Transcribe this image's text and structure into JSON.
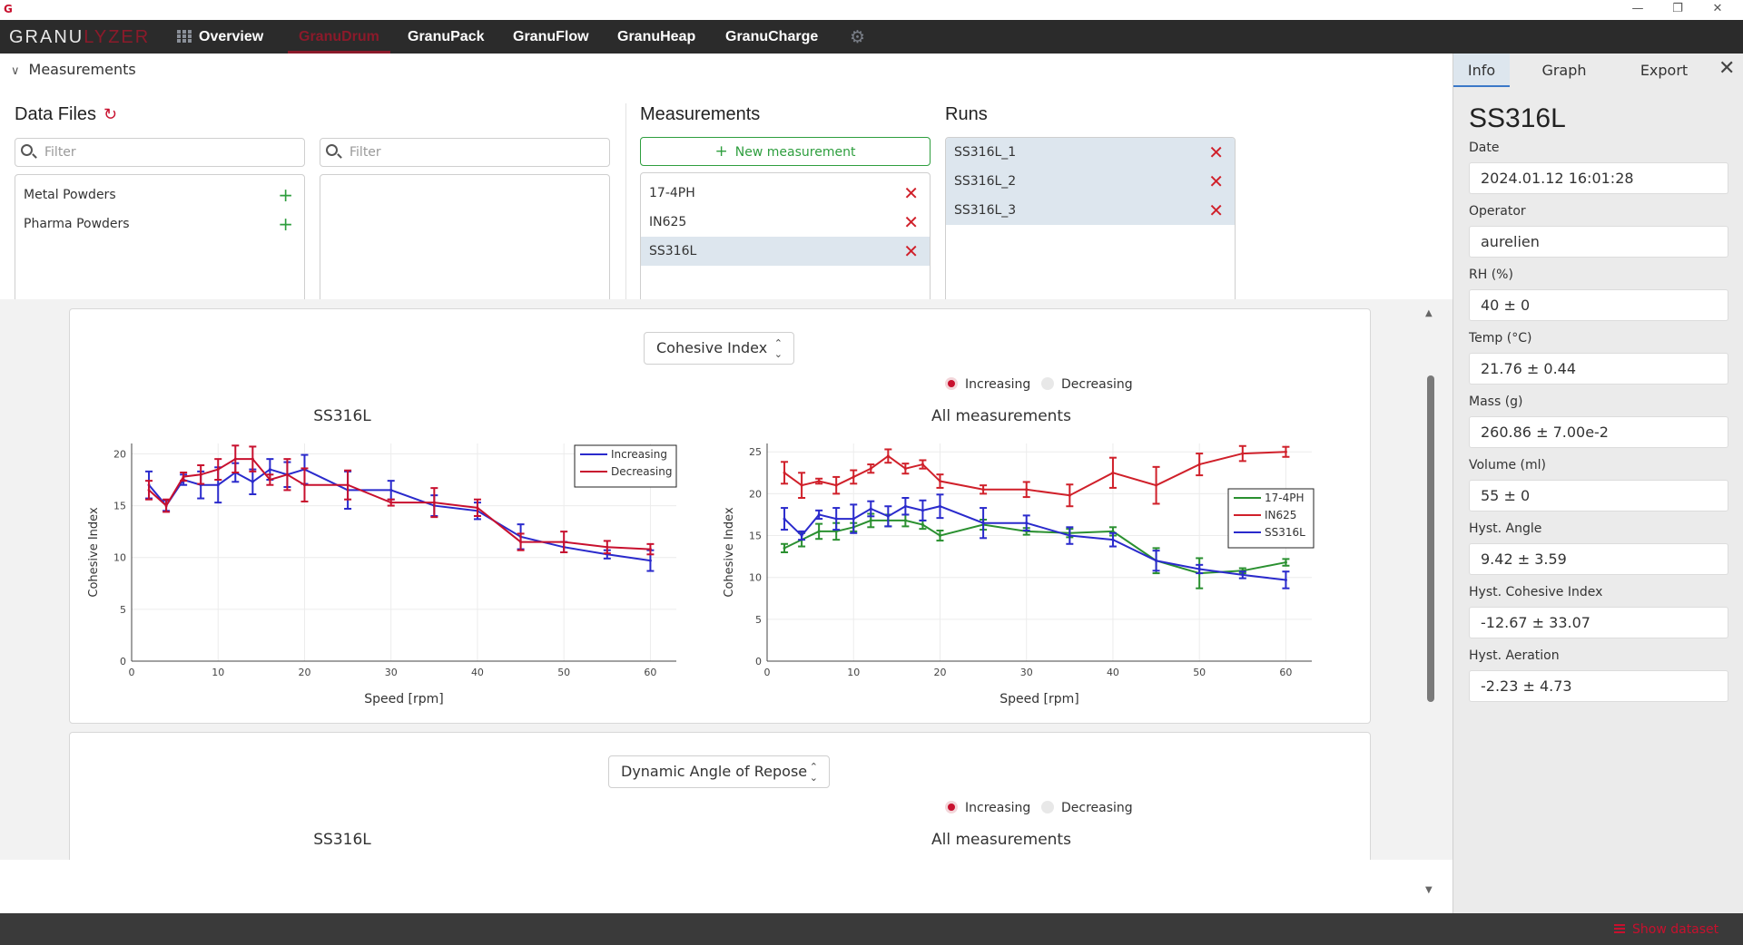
{
  "app": {
    "brand_part1": "GRANU",
    "brand_part2": "LYZER",
    "accent_color": "#c8102e"
  },
  "nav": {
    "tabs": [
      {
        "label": "Overview",
        "icon": "grid-icon"
      },
      {
        "label": "GranuDrum",
        "active": true
      },
      {
        "label": "GranuPack"
      },
      {
        "label": "GranuFlow"
      },
      {
        "label": "GranuHeap"
      },
      {
        "label": "GranuCharge"
      }
    ],
    "settings_icon": "gear-icon"
  },
  "measurements_toggle": "Measurements",
  "data_files": {
    "title": "Data Files",
    "filter1_placeholder": "Filter",
    "filter2_placeholder": "Filter",
    "folders": [
      {
        "label": "Metal Powders"
      },
      {
        "label": "Pharma Powders"
      }
    ]
  },
  "measurements": {
    "title": "Measurements",
    "new_button": "New measurement",
    "items": [
      {
        "label": "17-4PH"
      },
      {
        "label": "IN625"
      },
      {
        "label": "SS316L",
        "selected": true
      }
    ]
  },
  "runs": {
    "title": "Runs",
    "items": [
      {
        "label": "SS316L_1"
      },
      {
        "label": "SS316L_2"
      },
      {
        "label": "SS316L_3"
      }
    ]
  },
  "plot_cards": [
    {
      "metric_select": "Cohesive Index",
      "radio_increasing": "Increasing",
      "radio_decreasing": "Decreasing",
      "left_title": "SS316L",
      "right_title": "All measurements"
    },
    {
      "metric_select": "Dynamic Angle of Repose",
      "radio_increasing": "Increasing",
      "radio_decreasing": "Decreasing",
      "left_title": "SS316L",
      "right_title": "All measurements"
    }
  ],
  "chart_data": [
    {
      "type": "line",
      "title": "SS316L",
      "xlabel": "Speed [rpm]",
      "ylabel": "Cohesive Index",
      "xlim": [
        0,
        63
      ],
      "ylim": [
        0,
        21
      ],
      "xticks": [
        0,
        10,
        20,
        30,
        40,
        50,
        60
      ],
      "yticks": [
        0,
        5,
        10,
        15,
        20
      ],
      "grid": true,
      "legend": "top-right",
      "error_bars": true,
      "series": [
        {
          "name": "Increasing",
          "color": "#2a2acc",
          "x": [
            2,
            4,
            6,
            8,
            10,
            12,
            14,
            16,
            18,
            20,
            25,
            30,
            35,
            40,
            45,
            50,
            55,
            60
          ],
          "y": [
            17.0,
            15.0,
            17.5,
            17.0,
            17.0,
            18.2,
            17.3,
            18.5,
            18.0,
            18.5,
            16.5,
            16.5,
            15.0,
            14.5,
            12.0,
            11.0,
            10.3,
            9.7
          ],
          "err": [
            1.3,
            0.5,
            0.5,
            1.3,
            1.7,
            0.9,
            1.2,
            1.0,
            1.2,
            1.4,
            1.8,
            0.9,
            1.0,
            0.8,
            1.2,
            0.5,
            0.4,
            1.0
          ]
        },
        {
          "name": "Decreasing",
          "color": "#c8102e",
          "x": [
            2,
            4,
            6,
            8,
            10,
            12,
            14,
            16,
            18,
            20,
            25,
            30,
            35,
            40,
            45,
            50,
            55,
            60
          ],
          "y": [
            16.5,
            15.0,
            17.8,
            18.0,
            18.5,
            19.5,
            19.5,
            17.5,
            18.0,
            17.0,
            17.0,
            15.3,
            15.3,
            14.8,
            11.5,
            11.5,
            11.0,
            10.8
          ],
          "err": [
            0.9,
            0.6,
            0.4,
            0.9,
            1.0,
            1.3,
            1.2,
            0.5,
            1.5,
            1.6,
            1.4,
            0.3,
            1.4,
            0.8,
            0.8,
            1.0,
            0.6,
            0.5
          ]
        }
      ]
    },
    {
      "type": "line",
      "title": "All measurements",
      "xlabel": "Speed [rpm]",
      "ylabel": "Cohesive Index",
      "xlim": [
        0,
        63
      ],
      "ylim": [
        0,
        26
      ],
      "xticks": [
        0,
        10,
        20,
        30,
        40,
        50,
        60
      ],
      "yticks": [
        0,
        5,
        10,
        15,
        20,
        25
      ],
      "grid": true,
      "legend": "right",
      "error_bars": true,
      "series": [
        {
          "name": "17-4PH",
          "color": "#2a9030",
          "x": [
            2,
            4,
            6,
            8,
            10,
            12,
            14,
            16,
            18,
            20,
            25,
            30,
            35,
            40,
            45,
            50,
            55,
            60
          ],
          "y": [
            13.5,
            14.5,
            15.5,
            15.5,
            16.0,
            16.8,
            16.8,
            16.8,
            16.3,
            15.0,
            16.3,
            15.5,
            15.3,
            15.5,
            12.0,
            10.5,
            10.8,
            11.8
          ],
          "err": [
            0.5,
            0.8,
            0.9,
            1.0,
            0.5,
            0.8,
            0.7,
            0.7,
            0.5,
            0.6,
            0.6,
            0.4,
            0.5,
            0.5,
            1.5,
            1.8,
            0.3,
            0.4
          ]
        },
        {
          "name": "IN625",
          "color": "#d0202a",
          "x": [
            2,
            4,
            6,
            8,
            10,
            12,
            14,
            16,
            18,
            20,
            25,
            30,
            35,
            40,
            45,
            50,
            55,
            60
          ],
          "y": [
            22.5,
            21.0,
            21.5,
            21.0,
            22.0,
            23.0,
            24.5,
            23.0,
            23.5,
            21.5,
            20.5,
            20.5,
            19.8,
            22.5,
            21.0,
            23.5,
            24.8,
            25.0
          ],
          "err": [
            1.3,
            1.5,
            0.3,
            1.0,
            0.8,
            0.5,
            0.8,
            0.6,
            0.5,
            0.8,
            0.5,
            0.9,
            1.3,
            1.8,
            2.2,
            1.3,
            0.9,
            0.6
          ]
        },
        {
          "name": "SS316L",
          "color": "#2a2acc",
          "x": [
            2,
            4,
            6,
            8,
            10,
            12,
            14,
            16,
            18,
            20,
            25,
            30,
            35,
            40,
            45,
            50,
            55,
            60
          ],
          "y": [
            17.0,
            15.0,
            17.5,
            17.0,
            17.0,
            18.2,
            17.3,
            18.5,
            18.0,
            18.5,
            16.5,
            16.5,
            15.0,
            14.5,
            12.0,
            11.0,
            10.3,
            9.7
          ],
          "err": [
            1.3,
            0.5,
            0.5,
            1.3,
            1.7,
            0.9,
            1.2,
            1.0,
            1.2,
            1.4,
            1.8,
            0.9,
            1.0,
            0.8,
            1.2,
            0.5,
            0.4,
            1.0
          ]
        }
      ]
    }
  ],
  "right_panel": {
    "tabs": [
      {
        "label": "Info",
        "active": true
      },
      {
        "label": "Graph"
      },
      {
        "label": "Export"
      }
    ],
    "title": "SS316L",
    "fields": [
      {
        "label": "Date",
        "value": "2024.01.12 16:01:28"
      },
      {
        "label": "Operator",
        "value": "aurelien"
      },
      {
        "label": "RH (%)",
        "value": "40 ± 0"
      },
      {
        "label": "Temp (°C)",
        "value": "21.76 ± 0.44"
      },
      {
        "label": "Mass (g)",
        "value": "260.86 ± 7.00e-2"
      },
      {
        "label": "Volume (ml)",
        "value": "55 ± 0"
      },
      {
        "label": "Hyst. Angle",
        "value": "9.42 ± 3.59"
      },
      {
        "label": "Hyst. Cohesive Index",
        "value": "-12.67 ± 33.07"
      },
      {
        "label": "Hyst. Aeration",
        "value": "-2.23 ± 4.73"
      }
    ]
  },
  "status_bar": {
    "show_dataset": "Show dataset"
  }
}
